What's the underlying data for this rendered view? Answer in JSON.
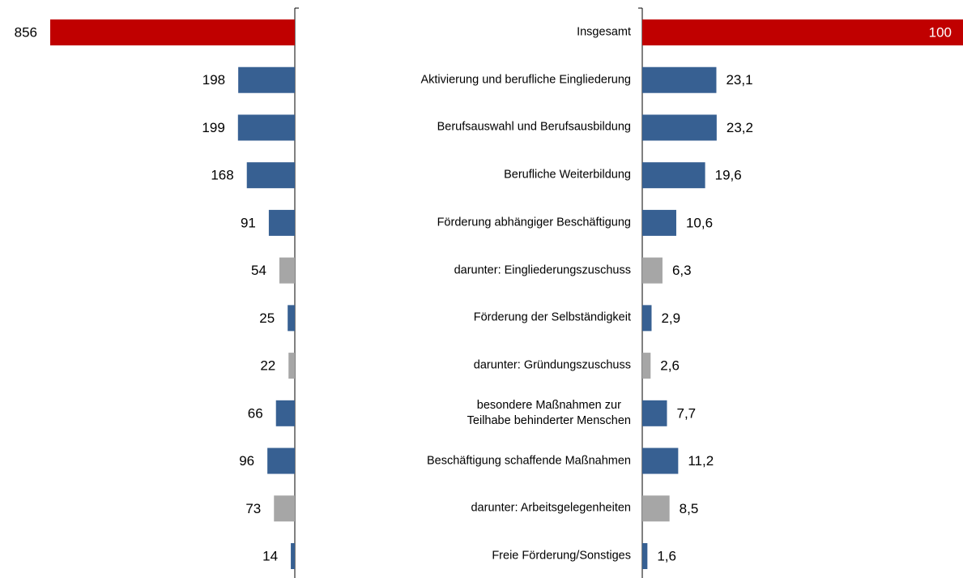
{
  "chart_data": {
    "type": "butterfly",
    "categories": [
      "Insgesamt",
      "Aktivierung und berufliche Eingliederung",
      "Berufsauswahl und Berufsausbildung",
      "Berufliche Weiterbildung",
      "Förderung abhängiger Beschäftigung",
      "darunter: Eingliederungszuschuss",
      "Förderung der Selbständigkeit",
      "darunter: Gründungszuschuss",
      "besondere Maßnahmen zur\nTeilhabe behinderter Menschen",
      "Beschäftigung schaffende Maßnahmen",
      "darunter: Arbeitsgelegenheiten",
      "Freie Förderung/Sonstiges"
    ],
    "colors": [
      "#c00000",
      "#376092",
      "#376092",
      "#376092",
      "#376092",
      "#a6a6a6",
      "#376092",
      "#a6a6a6",
      "#376092",
      "#376092",
      "#a6a6a6",
      "#376092"
    ],
    "series": [
      {
        "side": "left",
        "xlim": [
          0,
          856
        ],
        "values": [
          856,
          198,
          199,
          168,
          91,
          54,
          25,
          22,
          66,
          96,
          73,
          14
        ]
      },
      {
        "side": "right",
        "xlim": [
          0,
          100
        ],
        "values": [
          100,
          23.1,
          23.2,
          19.6,
          10.6,
          6.3,
          2.9,
          2.6,
          7.7,
          11.2,
          8.5,
          1.6
        ],
        "value_labels": [
          "100",
          "23,1",
          "23,2",
          "19,6",
          "10,6",
          "6,3",
          "2,9",
          "2,6",
          "7,7",
          "11,2",
          "8,5",
          "1,6"
        ]
      }
    ]
  }
}
